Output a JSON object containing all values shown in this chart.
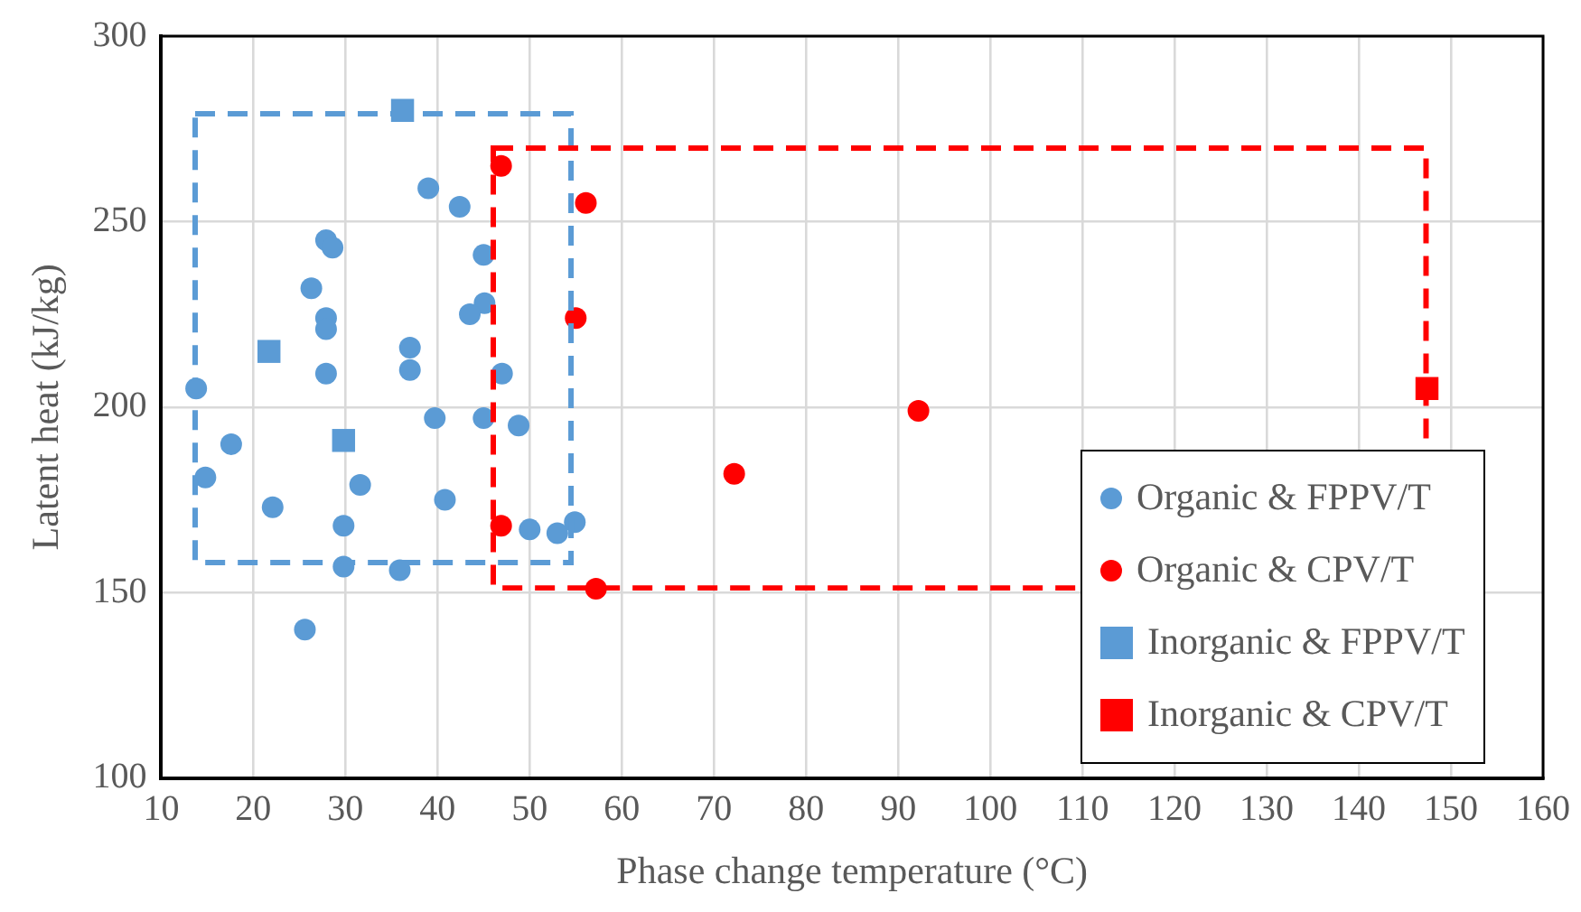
{
  "chart_data": {
    "type": "scatter",
    "xlabel": "Phase change temperature (°C)",
    "ylabel": "Latent heat (kJ/kg)",
    "xlim": [
      10,
      160
    ],
    "xticks": [
      10,
      20,
      30,
      40,
      50,
      60,
      70,
      80,
      90,
      100,
      110,
      120,
      130,
      140,
      150,
      160
    ],
    "ylim": [
      100,
      300
    ],
    "yticks": [
      100,
      150,
      200,
      250,
      300
    ],
    "grid": true,
    "legend": "bottom right",
    "series": [
      {
        "name": "Organic & FPPV/T",
        "color": "#5b9bd5",
        "marker": "circle",
        "x": [
          39.0,
          42.4,
          27.9,
          28.6,
          45.0,
          26.3,
          45.1,
          43.5,
          27.9,
          27.9,
          37.0,
          37.0,
          27.9,
          47.0,
          13.8,
          39.7,
          45.0,
          48.8,
          17.6,
          14.8,
          31.6,
          22.1,
          40.8,
          29.8,
          50.0,
          53.0,
          54.9,
          29.8,
          35.9,
          25.6
        ],
        "values": [
          259,
          254,
          245,
          243,
          241,
          232,
          228,
          225,
          224,
          221,
          216,
          210,
          209,
          209,
          205,
          197,
          197,
          195,
          190,
          181,
          179,
          173,
          175,
          168,
          167,
          166,
          169,
          157,
          156,
          140
        ]
      },
      {
        "name": "Organic & CPV/T",
        "color": "#ff0000",
        "marker": "circle",
        "x": [
          46.9,
          56.1,
          55.0,
          46.9,
          57.2,
          72.2,
          92.2
        ],
        "values": [
          265,
          255,
          224,
          168,
          151,
          182,
          199
        ]
      },
      {
        "name": "Inorganic & FPPV/T",
        "color": "#5b9bd5",
        "marker": "square",
        "x": [
          36.2,
          21.7,
          29.8
        ],
        "values": [
          280,
          215,
          191
        ]
      },
      {
        "name": "Inorganic & CPV/T",
        "color": "#ff0000",
        "marker": "square",
        "x": [
          147.4
        ],
        "values": [
          205
        ]
      }
    ]
  }
}
